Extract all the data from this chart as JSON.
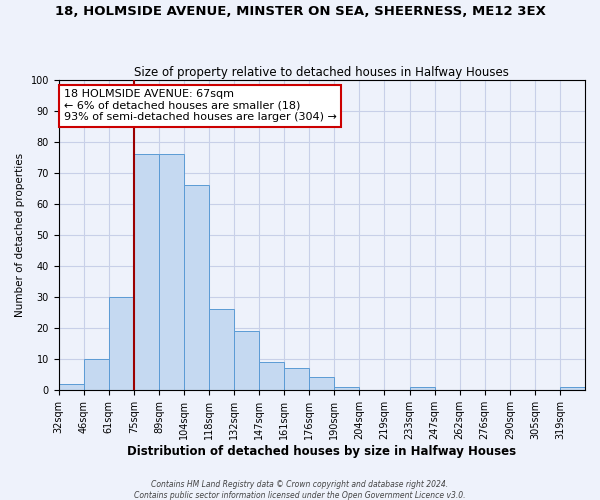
{
  "title": "18, HOLMSIDE AVENUE, MINSTER ON SEA, SHEERNESS, ME12 3EX",
  "subtitle": "Size of property relative to detached houses in Halfway Houses",
  "xlabel": "Distribution of detached houses by size in Halfway Houses",
  "ylabel": "Number of detached properties",
  "bin_labels": [
    "32sqm",
    "46sqm",
    "61sqm",
    "75sqm",
    "89sqm",
    "104sqm",
    "118sqm",
    "132sqm",
    "147sqm",
    "161sqm",
    "176sqm",
    "190sqm",
    "204sqm",
    "219sqm",
    "233sqm",
    "247sqm",
    "262sqm",
    "276sqm",
    "290sqm",
    "305sqm",
    "319sqm"
  ],
  "bar_heights": [
    2,
    10,
    30,
    76,
    76,
    66,
    26,
    19,
    9,
    7,
    4,
    1,
    0,
    0,
    1,
    0,
    0,
    0,
    0,
    0,
    1
  ],
  "bar_color": "#c5d9f1",
  "bar_edge_color": "#5b9bd5",
  "vline_color": "#9b0000",
  "annotation_title": "18 HOLMSIDE AVENUE: 67sqm",
  "annotation_line1": "← 6% of detached houses are smaller (18)",
  "annotation_line2": "93% of semi-detached houses are larger (304) →",
  "annotation_box_color": "#ffffff",
  "annotation_box_edge": "#cc0000",
  "ylim": [
    0,
    100
  ],
  "yticks": [
    0,
    10,
    20,
    30,
    40,
    50,
    60,
    70,
    80,
    90,
    100
  ],
  "footnote1": "Contains HM Land Registry data © Crown copyright and database right 2024.",
  "footnote2": "Contains public sector information licensed under the Open Government Licence v3.0.",
  "background_color": "#eef2fb",
  "grid_color": "#c8d0e8",
  "title_fontsize": 9.5,
  "subtitle_fontsize": 8.5,
  "xlabel_fontsize": 8.5,
  "ylabel_fontsize": 7.5,
  "tick_fontsize": 7.0,
  "annot_fontsize": 8.0,
  "footnote_fontsize": 5.5
}
